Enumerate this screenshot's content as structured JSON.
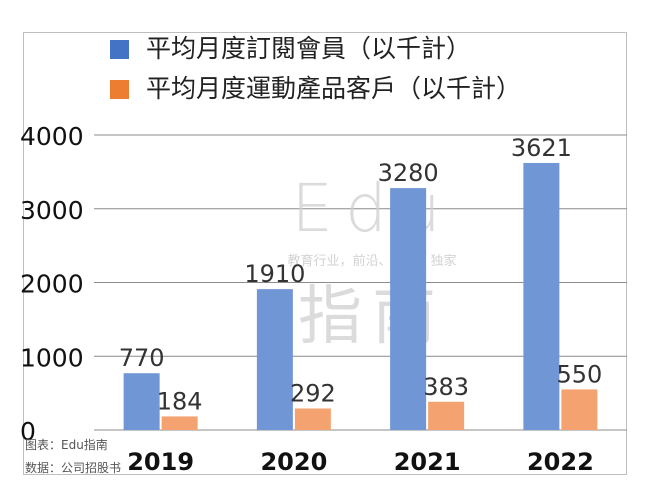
{
  "chart_data": {
    "type": "bar",
    "categories": [
      "2019",
      "2020",
      "2021",
      "2022"
    ],
    "series": [
      {
        "name": "平均月度訂閱會員（以千計）",
        "values": [
          770,
          1910,
          3280,
          3621
        ],
        "color": "#7096d6",
        "edge_color": "#4472c4"
      },
      {
        "name": "平均月度運動產品客戶（以千計）",
        "values": [
          184,
          292,
          383,
          550
        ],
        "color": "#f4a26f",
        "edge_color": "#ed7d31"
      }
    ],
    "yticks": [
      0,
      1000,
      2000,
      3000,
      4000
    ],
    "ylim": [
      0,
      4000
    ],
    "grid": true,
    "legend_position": "top-left",
    "data_labels": true
  },
  "watermark": {
    "logo_text": "Edu",
    "tagline": "教育行业，前沿、深度、独家",
    "logo_text_2": "指南"
  },
  "source": {
    "chart_by": "图表：Edu指南",
    "data_from": "数据：公司招股书"
  }
}
